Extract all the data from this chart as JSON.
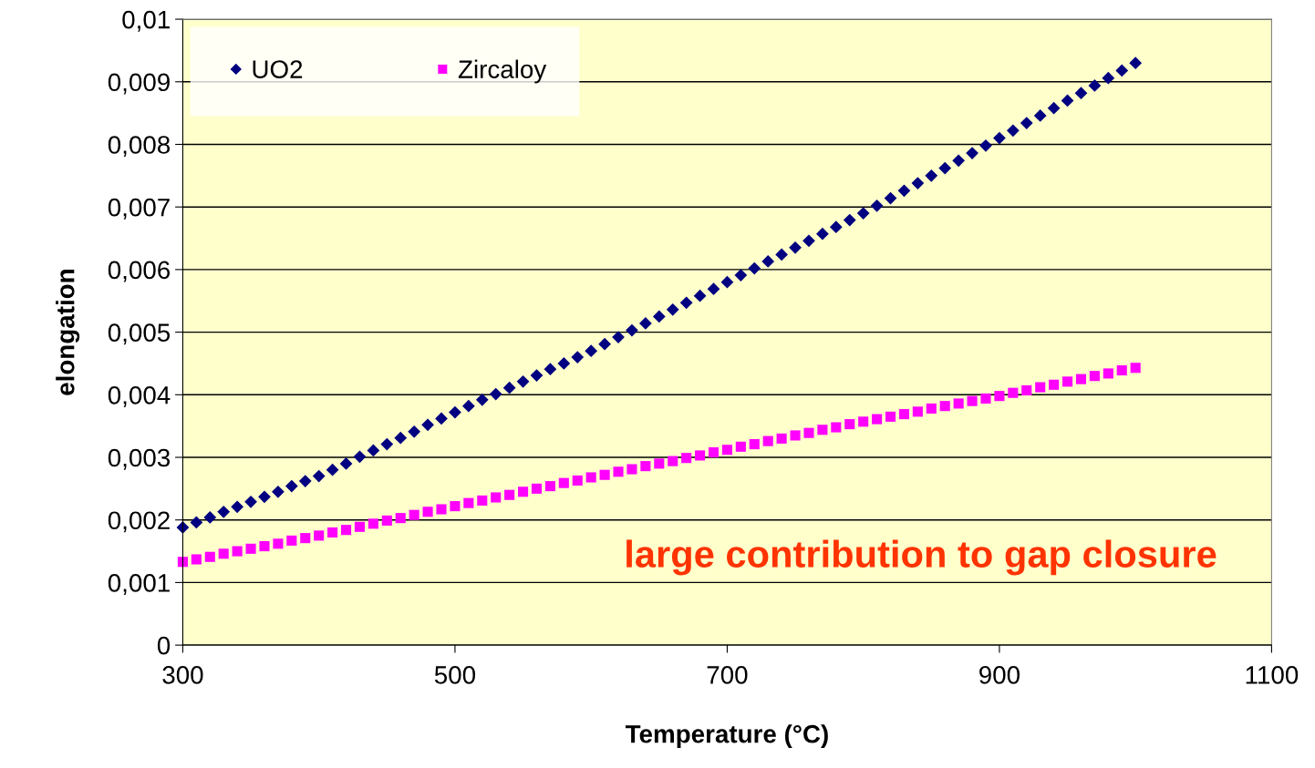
{
  "chart_data": {
    "type": "scatter",
    "xlabel": "Temperature (°C)",
    "ylabel": "elongation",
    "annotations": [
      "large contribution to gap closure"
    ],
    "x": [
      300,
      310,
      320,
      330,
      340,
      350,
      360,
      370,
      380,
      390,
      400,
      410,
      420,
      430,
      440,
      450,
      460,
      470,
      480,
      490,
      500,
      510,
      520,
      530,
      540,
      550,
      560,
      570,
      580,
      590,
      600,
      610,
      620,
      630,
      640,
      650,
      660,
      670,
      680,
      690,
      700,
      710,
      720,
      730,
      740,
      750,
      760,
      770,
      780,
      790,
      800,
      810,
      820,
      830,
      840,
      850,
      860,
      870,
      880,
      890,
      900,
      910,
      920,
      930,
      940,
      950,
      960,
      970,
      980,
      990,
      1000
    ],
    "series": [
      {
        "name": "UO2",
        "color": "#000080",
        "marker": "diamond",
        "values": [
          0.00188,
          0.00196,
          0.00204,
          0.00213,
          0.00221,
          0.00229,
          0.00237,
          0.00245,
          0.00254,
          0.00262,
          0.0027,
          0.0028,
          0.0029,
          0.00301,
          0.00311,
          0.00321,
          0.00331,
          0.00341,
          0.00352,
          0.00362,
          0.00372,
          0.00382,
          0.00392,
          0.00401,
          0.00411,
          0.00421,
          0.00431,
          0.00441,
          0.0045,
          0.0046,
          0.0047,
          0.00481,
          0.00492,
          0.00503,
          0.00514,
          0.00525,
          0.00536,
          0.00547,
          0.00558,
          0.00569,
          0.0058,
          0.00591,
          0.00602,
          0.00613,
          0.00624,
          0.00635,
          0.00646,
          0.00657,
          0.00668,
          0.00679,
          0.0069,
          0.00702,
          0.00714,
          0.00726,
          0.00738,
          0.0075,
          0.00762,
          0.00774,
          0.00786,
          0.00798,
          0.0081,
          0.00822,
          0.00834,
          0.00846,
          0.00858,
          0.0087,
          0.00882,
          0.00894,
          0.00906,
          0.00918,
          0.0093
        ]
      },
      {
        "name": "Zircaloy",
        "color": "#ff00ff",
        "marker": "square",
        "values": [
          0.00133,
          0.00137,
          0.00141,
          0.00146,
          0.0015,
          0.00154,
          0.00158,
          0.00162,
          0.00167,
          0.00171,
          0.00175,
          0.0018,
          0.00184,
          0.00189,
          0.00194,
          0.00199,
          0.00203,
          0.00208,
          0.00213,
          0.00217,
          0.00222,
          0.00227,
          0.00231,
          0.00236,
          0.0024,
          0.00245,
          0.0025,
          0.00254,
          0.00259,
          0.00263,
          0.00268,
          0.00272,
          0.00277,
          0.00281,
          0.00286,
          0.0029,
          0.00294,
          0.00299,
          0.00303,
          0.00308,
          0.00312,
          0.00317,
          0.00321,
          0.00326,
          0.0033,
          0.00335,
          0.00339,
          0.00344,
          0.00348,
          0.00353,
          0.00357,
          0.00361,
          0.00365,
          0.00369,
          0.00373,
          0.00378,
          0.00382,
          0.00386,
          0.0039,
          0.00394,
          0.00398,
          0.00403,
          0.00407,
          0.00412,
          0.00416,
          0.00421,
          0.00425,
          0.0043,
          0.00434,
          0.00439,
          0.00443
        ]
      }
    ],
    "xlim": [
      300,
      1100
    ],
    "xticks": [
      300,
      500,
      700,
      900,
      1100
    ],
    "ylim": [
      0,
      0.01
    ],
    "yticks": [
      0,
      {
        "value": 0.001,
        "label": "0,001"
      },
      {
        "value": 0.002,
        "label": "0,002"
      },
      {
        "value": 0.003,
        "label": "0,003"
      },
      {
        "value": 0.004,
        "label": "0,004"
      },
      {
        "value": 0.005,
        "label": "0,005"
      },
      {
        "value": 0.006,
        "label": "0,006"
      },
      {
        "value": 0.007,
        "label": "0,007"
      },
      {
        "value": 0.008,
        "label": "0,008"
      },
      {
        "value": 0.009,
        "label": "0,009"
      },
      {
        "value": 0.01,
        "label": "0,01"
      }
    ],
    "grid": "y",
    "legend": "top left"
  }
}
